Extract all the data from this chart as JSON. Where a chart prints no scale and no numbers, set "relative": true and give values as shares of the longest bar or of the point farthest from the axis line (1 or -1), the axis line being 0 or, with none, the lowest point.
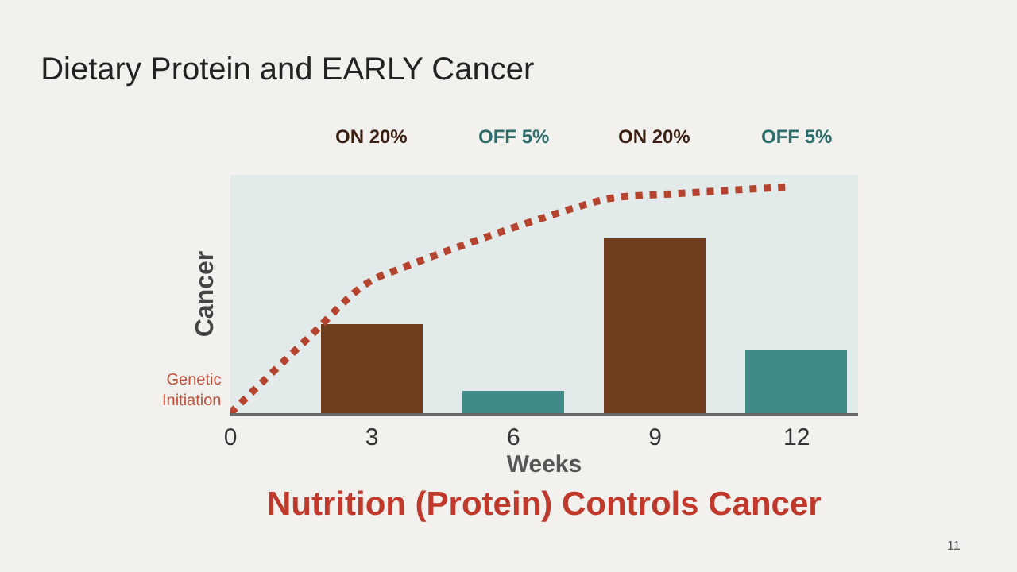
{
  "chart_data": {
    "type": "bar",
    "title": "Dietary Protein and EARLY Cancer",
    "subtitle": "Nutrition (Protein) Controls Cancer",
    "xlabel": "Weeks",
    "ylabel": "Cancer",
    "relative": true,
    "xlim": [
      0,
      13.3
    ],
    "xticks": [
      0,
      3,
      6,
      9,
      12
    ],
    "grid": false,
    "series": [
      {
        "x": [
          3,
          6,
          9,
          12
        ],
        "values": [
          0.39,
          0.1,
          0.77,
          0.28
        ],
        "colors": [
          "#6e3d1e",
          "#3e8b88",
          "#6e3d1e",
          "#3e8b88"
        ]
      },
      {
        "type": "line",
        "x": [
          0,
          1.64,
          2.87,
          3.75,
          5.87,
          7.51,
          8.09,
          9.5,
          11.85
        ],
        "values": [
          0,
          0.33,
          0.57,
          0.65,
          0.81,
          0.92,
          0.95,
          0.97,
          1
        ],
        "color": "#b5442f",
        "line_style": "dotted",
        "marker": "none"
      }
    ],
    "annotations": [
      "ON 20%",
      "OFF 5%",
      "ON 20%",
      "OFF 5%",
      {
        "text": "Genetic Initiation",
        "x": 0,
        "y": 0
      },
      "11"
    ]
  }
}
